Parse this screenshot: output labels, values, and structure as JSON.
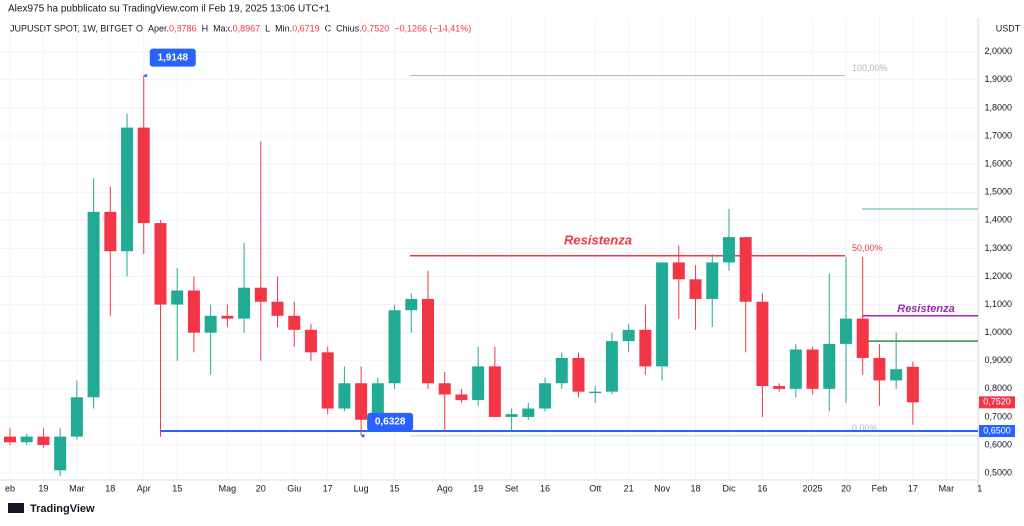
{
  "header": {
    "author_line": "Alex975 ha pubblicato su TradingView.com il Feb 19, 2025 13:06 UTC+1",
    "symbol": "JUPUSDT SPOT, 1W, BITGET",
    "fields": [
      "O",
      "Aper.",
      "0,8786",
      "H",
      "Max.",
      "0,8967",
      "L",
      "Min.",
      "0,6719",
      "C",
      "Chius.",
      "0,7520",
      "−0,1266 (−14,41%)"
    ]
  },
  "footer": "TradingView",
  "chart_data": {
    "type": "candlestick",
    "currency": "USDT",
    "open": [
      0.63,
      0.61,
      0.63,
      0.51,
      0.63,
      0.77,
      1.43,
      1.29,
      1.73,
      1.39,
      1.1,
      1.15,
      1.0,
      1.06,
      1.05,
      1.16,
      1.11,
      1.06,
      1.01,
      0.93,
      0.73,
      0.82,
      0.69,
      0.82,
      1.08,
      1.12,
      0.82,
      0.78,
      0.76,
      0.88,
      0.7,
      0.7,
      0.73,
      0.82,
      0.91,
      0.785,
      0.79,
      0.97,
      1.01,
      0.88,
      1.25,
      1.19,
      1.12,
      1.25,
      1.34,
      1.11,
      0.81,
      0.8,
      0.94,
      0.8,
      0.96,
      1.05,
      0.91,
      0.83,
      0.8786
    ],
    "high": [
      0.66,
      0.64,
      0.66,
      0.66,
      0.83,
      1.55,
      1.52,
      1.78,
      1.9148,
      1.4,
      1.23,
      1.2,
      1.1,
      1.1,
      1.32,
      1.68,
      1.2,
      1.11,
      1.03,
      0.95,
      0.88,
      0.88,
      0.84,
      1.1,
      1.14,
      1.22,
      0.86,
      0.8,
      0.95,
      0.95,
      0.73,
      0.75,
      0.84,
      0.93,
      0.93,
      0.81,
      1.0,
      1.03,
      1.1,
      1.25,
      1.31,
      1.24,
      1.28,
      1.44,
      1.34,
      1.14,
      0.82,
      0.96,
      0.95,
      1.21,
      1.27,
      1.27,
      0.96,
      1.0,
      0.8967
    ],
    "low": [
      0.6,
      0.6,
      0.59,
      0.49,
      0.62,
      0.73,
      1.06,
      1.2,
      1.28,
      0.63,
      0.9,
      0.93,
      0.85,
      1.02,
      1.0,
      0.9,
      1.02,
      0.95,
      0.9,
      0.71,
      0.72,
      0.6328,
      0.66,
      0.8,
      1.0,
      0.8,
      0.65,
      0.75,
      0.74,
      0.7,
      0.65,
      0.69,
      0.72,
      0.8,
      0.77,
      0.75,
      0.78,
      0.93,
      0.85,
      0.83,
      1.05,
      1.01,
      1.02,
      1.22,
      0.93,
      0.7,
      0.79,
      0.77,
      0.78,
      0.72,
      0.75,
      0.85,
      0.74,
      0.8,
      0.6719
    ],
    "close": [
      0.61,
      0.63,
      0.6,
      0.63,
      0.77,
      1.43,
      1.29,
      1.73,
      1.39,
      1.1,
      1.15,
      1.0,
      1.06,
      1.05,
      1.16,
      1.11,
      1.06,
      1.01,
      0.93,
      0.73,
      0.82,
      0.69,
      0.82,
      1.08,
      1.12,
      0.82,
      0.78,
      0.76,
      0.88,
      0.7,
      0.71,
      0.73,
      0.82,
      0.91,
      0.79,
      0.79,
      0.97,
      1.01,
      0.88,
      1.25,
      1.19,
      1.12,
      1.25,
      1.34,
      1.11,
      0.81,
      0.8,
      0.94,
      0.8,
      0.96,
      1.05,
      0.91,
      0.83,
      0.87,
      0.752
    ],
    "up_color": "#22ab94",
    "down_color": "#f23645",
    "ylim": [
      0.44,
      2.12
    ],
    "yticks": [
      {
        "value": 0.5,
        "label": "0,5000"
      },
      {
        "value": 0.6,
        "label": "0,6000"
      },
      {
        "value": 0.7,
        "label": "0,7000"
      },
      {
        "value": 0.8,
        "label": "0,8000"
      },
      {
        "value": 0.9,
        "label": "0,9000"
      },
      {
        "value": 1.0,
        "label": "1,0000"
      },
      {
        "value": 1.1,
        "label": "1,1000"
      },
      {
        "value": 1.2,
        "label": "1,2000"
      },
      {
        "value": 1.3,
        "label": "1,3000"
      },
      {
        "value": 1.4,
        "label": "1,4000"
      },
      {
        "value": 1.5,
        "label": "1,5000"
      },
      {
        "value": 1.6,
        "label": "1,6000"
      },
      {
        "value": 1.7,
        "label": "1,7000"
      },
      {
        "value": 1.8,
        "label": "1,8000"
      },
      {
        "value": 1.9,
        "label": "1,9000"
      },
      {
        "value": 2.0,
        "label": "2,0000"
      }
    ],
    "xticks": [
      {
        "value": 0,
        "label": "eb"
      },
      {
        "value": 2,
        "label": "19"
      },
      {
        "value": 4,
        "label": "Mar"
      },
      {
        "value": 6,
        "label": "18"
      },
      {
        "value": 8,
        "label": "Apr"
      },
      {
        "value": 10,
        "label": "15"
      },
      {
        "value": 13,
        "label": "Mag"
      },
      {
        "value": 15,
        "label": "20"
      },
      {
        "value": 17,
        "label": "Giu"
      },
      {
        "value": 19,
        "label": "17"
      },
      {
        "value": 21,
        "label": "Lug"
      },
      {
        "value": 23,
        "label": "15"
      },
      {
        "value": 26,
        "label": "Ago"
      },
      {
        "value": 28,
        "label": "19"
      },
      {
        "value": 30,
        "label": "Set"
      },
      {
        "value": 32,
        "label": "16"
      },
      {
        "value": 35,
        "label": "Ott"
      },
      {
        "value": 37,
        "label": "21"
      },
      {
        "value": 39,
        "label": "Nov"
      },
      {
        "value": 41,
        "label": "18"
      },
      {
        "value": 43,
        "label": "Dic"
      },
      {
        "value": 45,
        "label": "16"
      },
      {
        "value": 48,
        "label": "2025"
      },
      {
        "value": 50,
        "label": "20"
      },
      {
        "value": 52,
        "label": "Feb"
      },
      {
        "value": 54,
        "label": "17"
      },
      {
        "value": 56,
        "label": "Mar"
      },
      {
        "value": 58,
        "label": "1"
      }
    ],
    "grid": true,
    "callouts": [
      {
        "value": 1.9148,
        "label": "1,9148"
      },
      {
        "value": 0.6328,
        "label": "0,6328"
      }
    ],
    "fib_levels": [
      {
        "value": 1.9148,
        "label": "100,00%"
      },
      {
        "value": 1.2738,
        "label": "50,00%"
      },
      {
        "value": 0.6328,
        "label": "0,00%"
      }
    ],
    "resistance_labels": [
      "Resistenza",
      "Resistenza"
    ],
    "hlines": [
      {
        "value": 0.65,
        "color": "#2962ff"
      },
      {
        "value": 1.06,
        "color": "#9c27b0"
      },
      {
        "value": 0.97,
        "color": "#388e3c"
      },
      {
        "value": 1.44,
        "color": "#4db6ac"
      }
    ],
    "price_badges": [
      {
        "value": 0.752,
        "label": "0,7520",
        "color": "#f23645"
      },
      {
        "value": 0.65,
        "label": "0,6500",
        "color": "#2962ff"
      }
    ]
  }
}
